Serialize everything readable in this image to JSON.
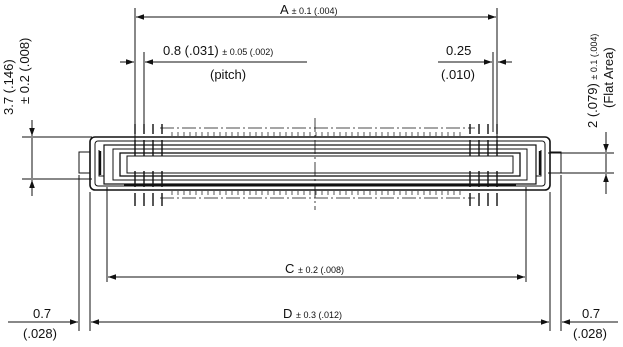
{
  "dimensions": {
    "a": {
      "label": "A",
      "tol": "± 0.1 (.004)"
    },
    "pitch": {
      "value": "0.8 (.031)",
      "tol": "± 0.05 (.002)",
      "note": "(pitch)"
    },
    "width": {
      "value": "0.25",
      "inch": "(.010)"
    },
    "height": {
      "value": "3.7 (.146)",
      "tol": "± 0.2 (.008)"
    },
    "flat": {
      "value": "2 (.079)",
      "tol": "± 0.1 (.004)",
      "note": "(Flat Area)"
    },
    "c": {
      "label": "C",
      "tol": "± 0.2 (.008)"
    },
    "d": {
      "label": "D",
      "tol": "± 0.3 (.012)"
    },
    "left_edge": {
      "value": "0.7",
      "inch": "(.028)"
    },
    "right_edge": {
      "value": "0.7",
      "inch": "(.028)"
    }
  },
  "colors": {
    "line": "#111111",
    "background": "#ffffff"
  }
}
